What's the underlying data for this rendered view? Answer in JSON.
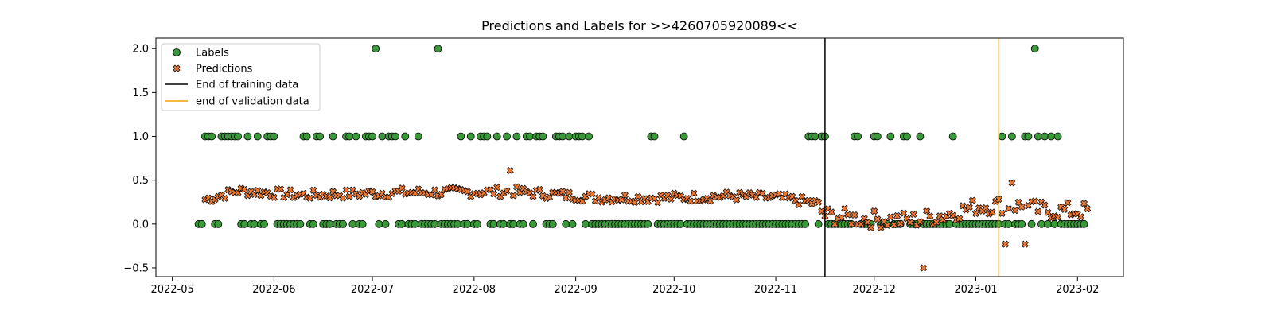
{
  "chart_data": {
    "type": "scatter",
    "title": "Predictions and Labels for >>4260705920089<<",
    "xlabel": "",
    "ylabel": "",
    "xlim": [
      "2022-04-26",
      "2023-02-15"
    ],
    "ylim": [
      -0.6,
      2.12
    ],
    "x_ticks": [
      "2022-05-01",
      "2022-06-01",
      "2022-07-01",
      "2022-08-01",
      "2022-09-01",
      "2022-10-01",
      "2022-11-01",
      "2022-12-01",
      "2023-01-01",
      "2023-02-01"
    ],
    "x_tick_labels": [
      "2022-05",
      "2022-06",
      "2022-07",
      "2022-08",
      "2022-09",
      "2022-10",
      "2022-11",
      "2022-12",
      "2023-01",
      "2023-02"
    ],
    "y_ticks": [
      -0.5,
      0.0,
      0.5,
      1.0,
      1.5,
      2.0
    ],
    "y_tick_labels": [
      "−0.5",
      "0.0",
      "0.5",
      "1.0",
      "1.5",
      "2.0"
    ],
    "grid": false,
    "legend_position": "upper-left",
    "colors": {
      "labels": "#3a9a3a",
      "predictions": "#f07830",
      "training_line": "#000000",
      "validation_line": "#f5a000"
    },
    "series": [
      {
        "name": "Labels",
        "marker": "circle",
        "start_date": "2022-05-09",
        "ones_days": [
          2,
          3,
          4,
          7,
          8,
          9,
          10,
          11,
          12,
          15,
          18,
          21,
          22,
          23,
          32,
          33,
          36,
          37,
          41,
          45,
          46,
          48,
          51,
          52,
          53,
          54,
          56,
          58,
          59,
          60,
          63,
          67,
          80,
          83,
          86,
          87,
          88,
          91,
          94,
          97,
          100,
          101,
          103,
          104,
          105,
          109,
          110,
          111,
          113,
          115,
          116,
          117,
          119,
          138,
          139,
          148,
          186,
          187,
          188,
          190,
          191,
          200,
          201,
          206,
          207,
          211,
          215,
          216,
          220,
          230,
          245,
          248,
          252,
          253,
          256,
          258,
          260,
          262
        ],
        "twos_days": [
          54,
          73,
          255
        ],
        "end_date": "2023-02-03"
      },
      {
        "name": "Predictions",
        "marker": "x",
        "start_date": "2022-05-11",
        "base_profile": [
          [
            0,
            0.28
          ],
          [
            10,
            0.38
          ],
          [
            30,
            0.33
          ],
          [
            60,
            0.36
          ],
          [
            95,
            0.37
          ],
          [
            120,
            0.3
          ],
          [
            140,
            0.3
          ],
          [
            160,
            0.32
          ],
          [
            175,
            0.3
          ],
          [
            186,
            0.24
          ],
          [
            189,
            0.1
          ],
          [
            200,
            0.06
          ],
          [
            215,
            0.04
          ],
          [
            225,
            0.1
          ],
          [
            235,
            0.2
          ],
          [
            245,
            0.22
          ],
          [
            257,
            0.15
          ]
        ],
        "outliers": [
          [
            93,
            0.61
          ],
          [
            219,
            -0.5
          ],
          [
            244,
            -0.23
          ],
          [
            250,
            -0.23
          ],
          [
            246,
            0.47
          ]
        ],
        "end_date": "2023-02-04"
      }
    ],
    "vlines": [
      {
        "name": "End of training data",
        "date": "2022-11-16"
      },
      {
        "name": "end of validation data",
        "date": "2023-01-08"
      }
    ]
  }
}
